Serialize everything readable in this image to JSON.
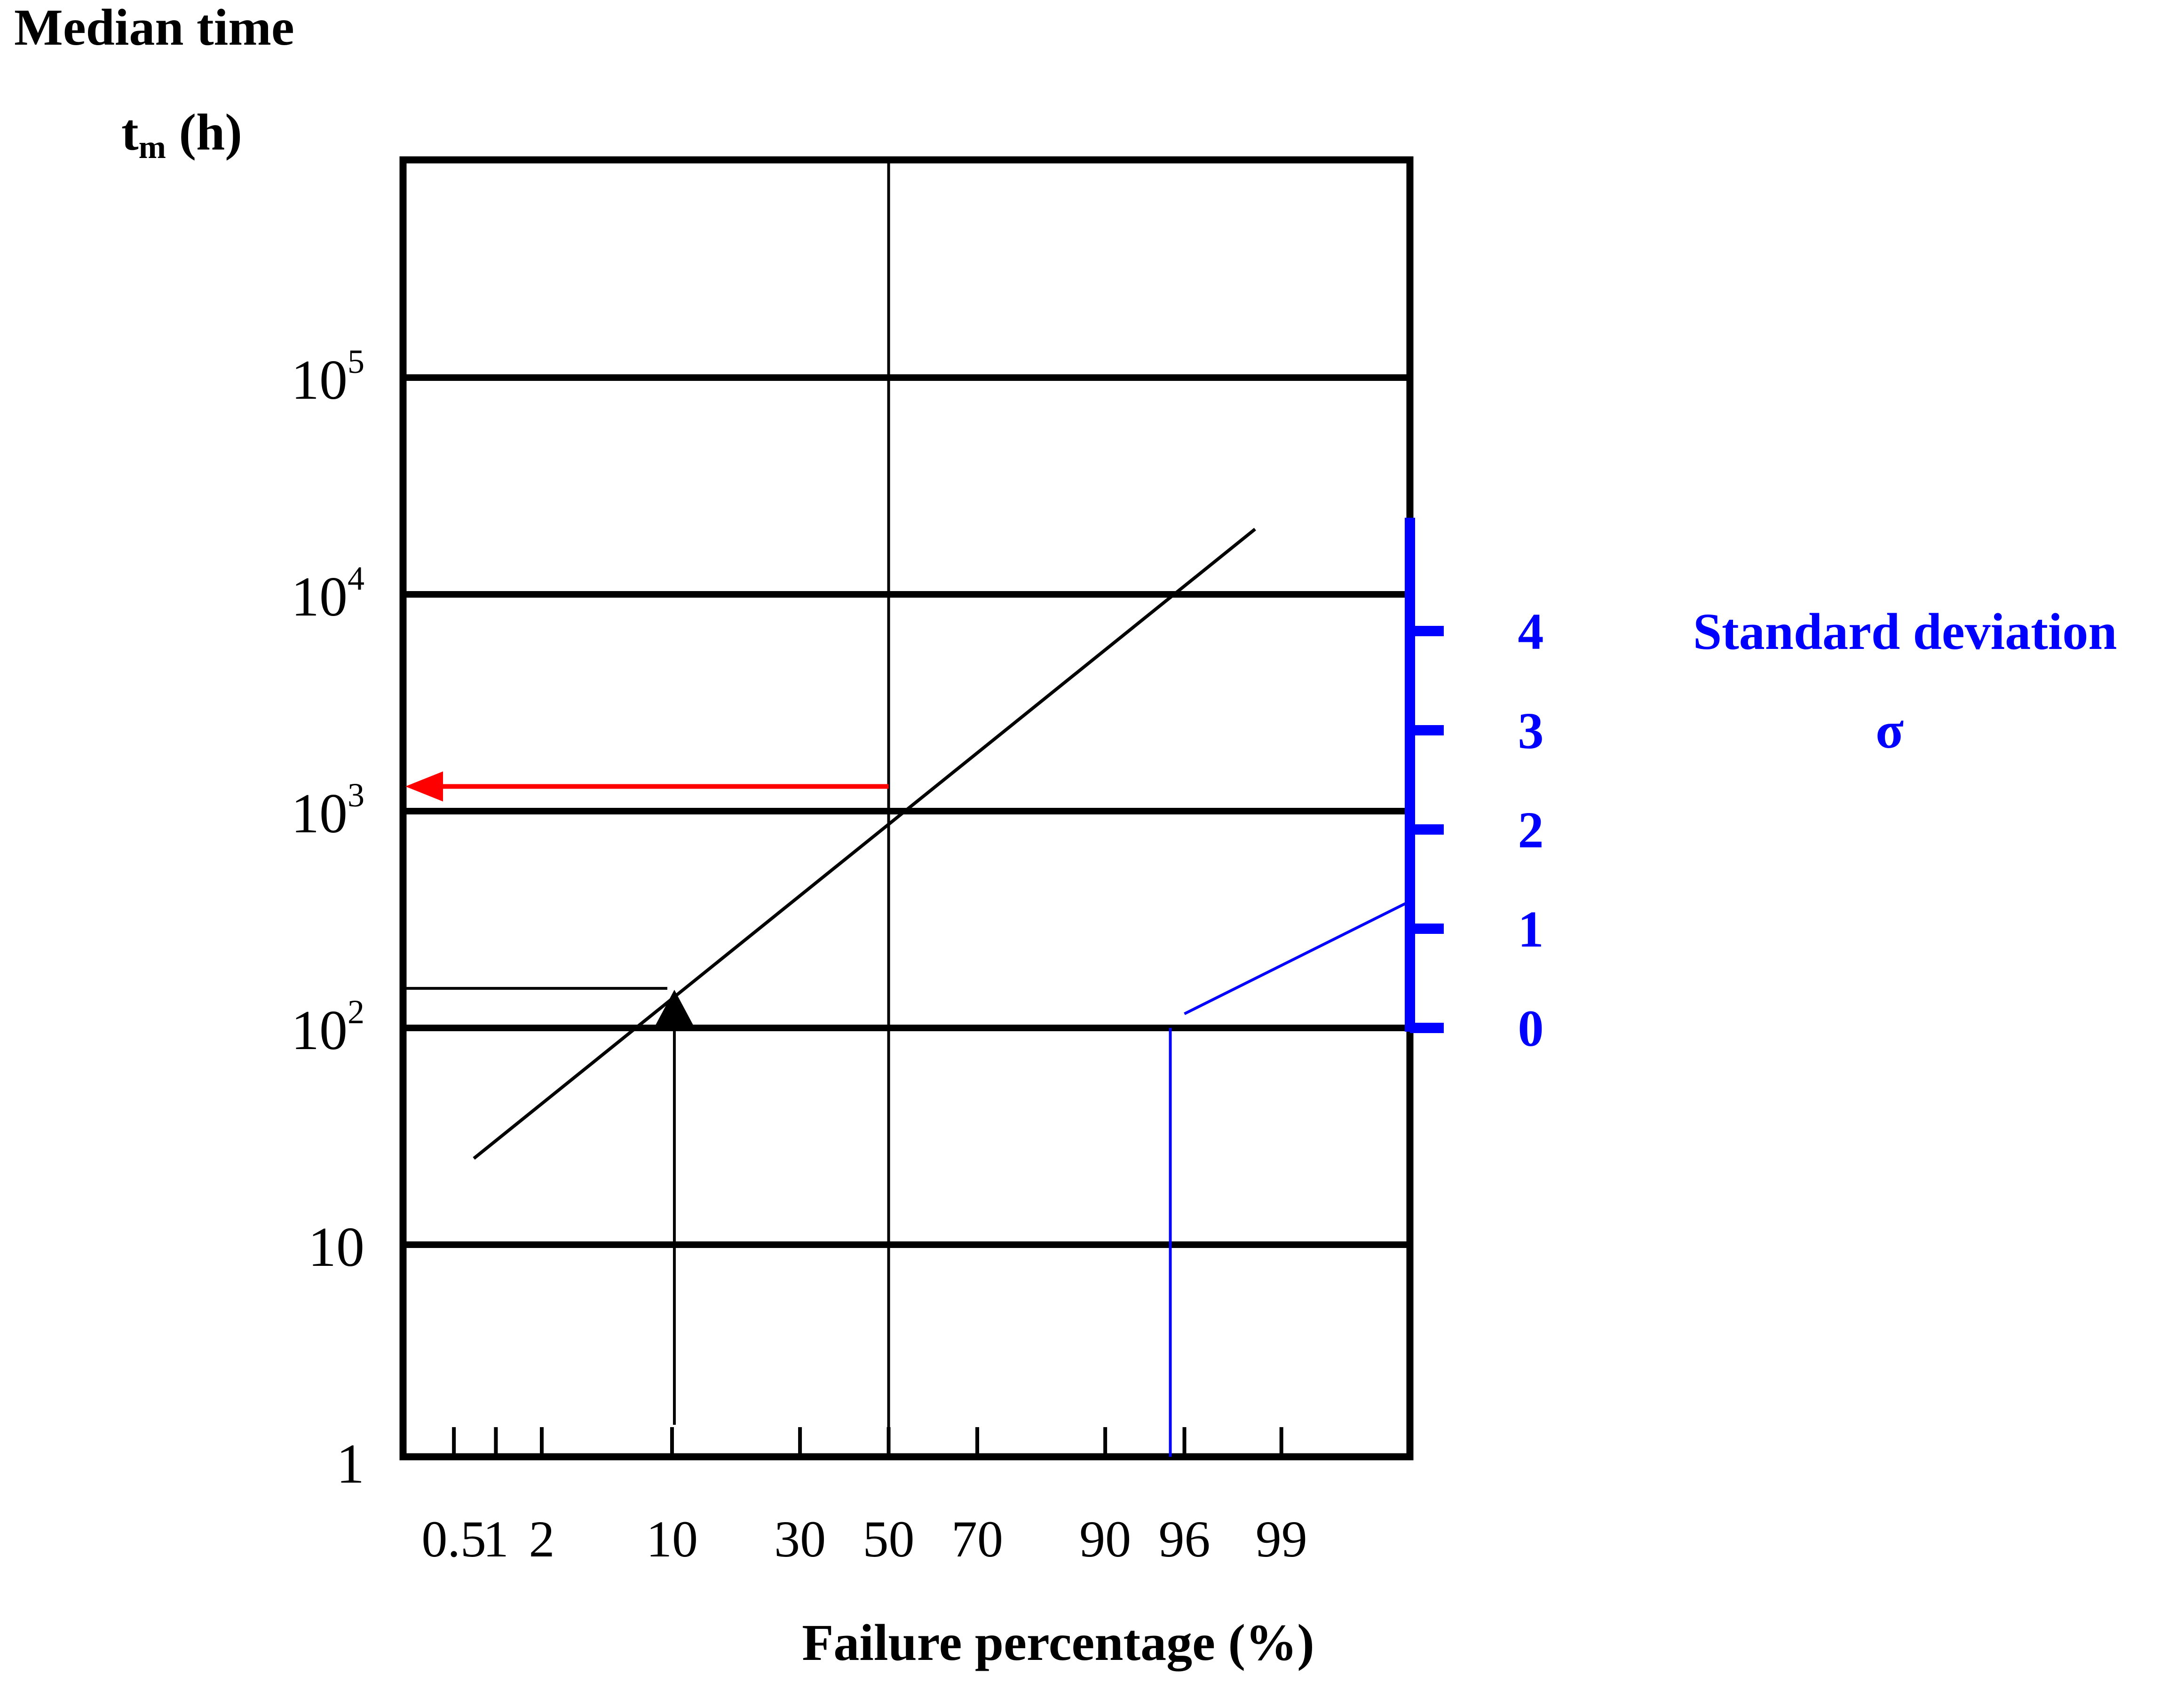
{
  "chart_data": {
    "type": "line",
    "title": "",
    "y_title": "Median time",
    "y_unit_main": "t",
    "y_unit_sub": "m",
    "y_unit_rest": " (h)",
    "xlabel": "Failure percentage (%)",
    "y_scale": "log",
    "ylim": [
      1,
      1000000
    ],
    "x_scale": "probability",
    "xlim_percent": [
      0.2,
      99.9
    ],
    "grid": true,
    "y_ticks": [
      {
        "value": 1,
        "base": "1",
        "exp": ""
      },
      {
        "value": 10,
        "base": "10",
        "exp": ""
      },
      {
        "value": 100,
        "base": "10",
        "exp": "2"
      },
      {
        "value": 1000,
        "base": "10",
        "exp": "3"
      },
      {
        "value": 10000,
        "base": "10",
        "exp": "4"
      },
      {
        "value": 100000,
        "base": "10",
        "exp": "5"
      }
    ],
    "x_ticks": [
      {
        "value": 0.5,
        "label": "0.5"
      },
      {
        "value": 1,
        "label": "1"
      },
      {
        "value": 2,
        "label": "2"
      },
      {
        "value": 10,
        "label": "10"
      },
      {
        "value": 30,
        "label": "30"
      },
      {
        "value": 50,
        "label": "50"
      },
      {
        "value": 70,
        "label": "70"
      },
      {
        "value": 90,
        "label": "90"
      },
      {
        "value": 96,
        "label": "96"
      },
      {
        "value": 99,
        "label": "99"
      }
    ],
    "series": [
      {
        "x": [
          0.7,
          98.5
        ],
        "y": [
          25,
          20000
        ],
        "color": "#000000"
      }
    ],
    "annotations": {
      "median_readout": {
        "x": 50,
        "y": 1300,
        "color": "#ff0000"
      },
      "ten_percent_readout": {
        "x": 10,
        "y": 150,
        "color": "#000000"
      },
      "sigma_construction": {
        "x": 96,
        "y": 100,
        "sigma_at_edge": 1.3,
        "color": "#0000ff"
      }
    },
    "sigma_scale": {
      "title": "Standard deviation",
      "symbol": "σ",
      "ticks": [
        "0",
        "1",
        "2",
        "3",
        "4"
      ],
      "max": 5,
      "color": "#0000ff"
    }
  }
}
